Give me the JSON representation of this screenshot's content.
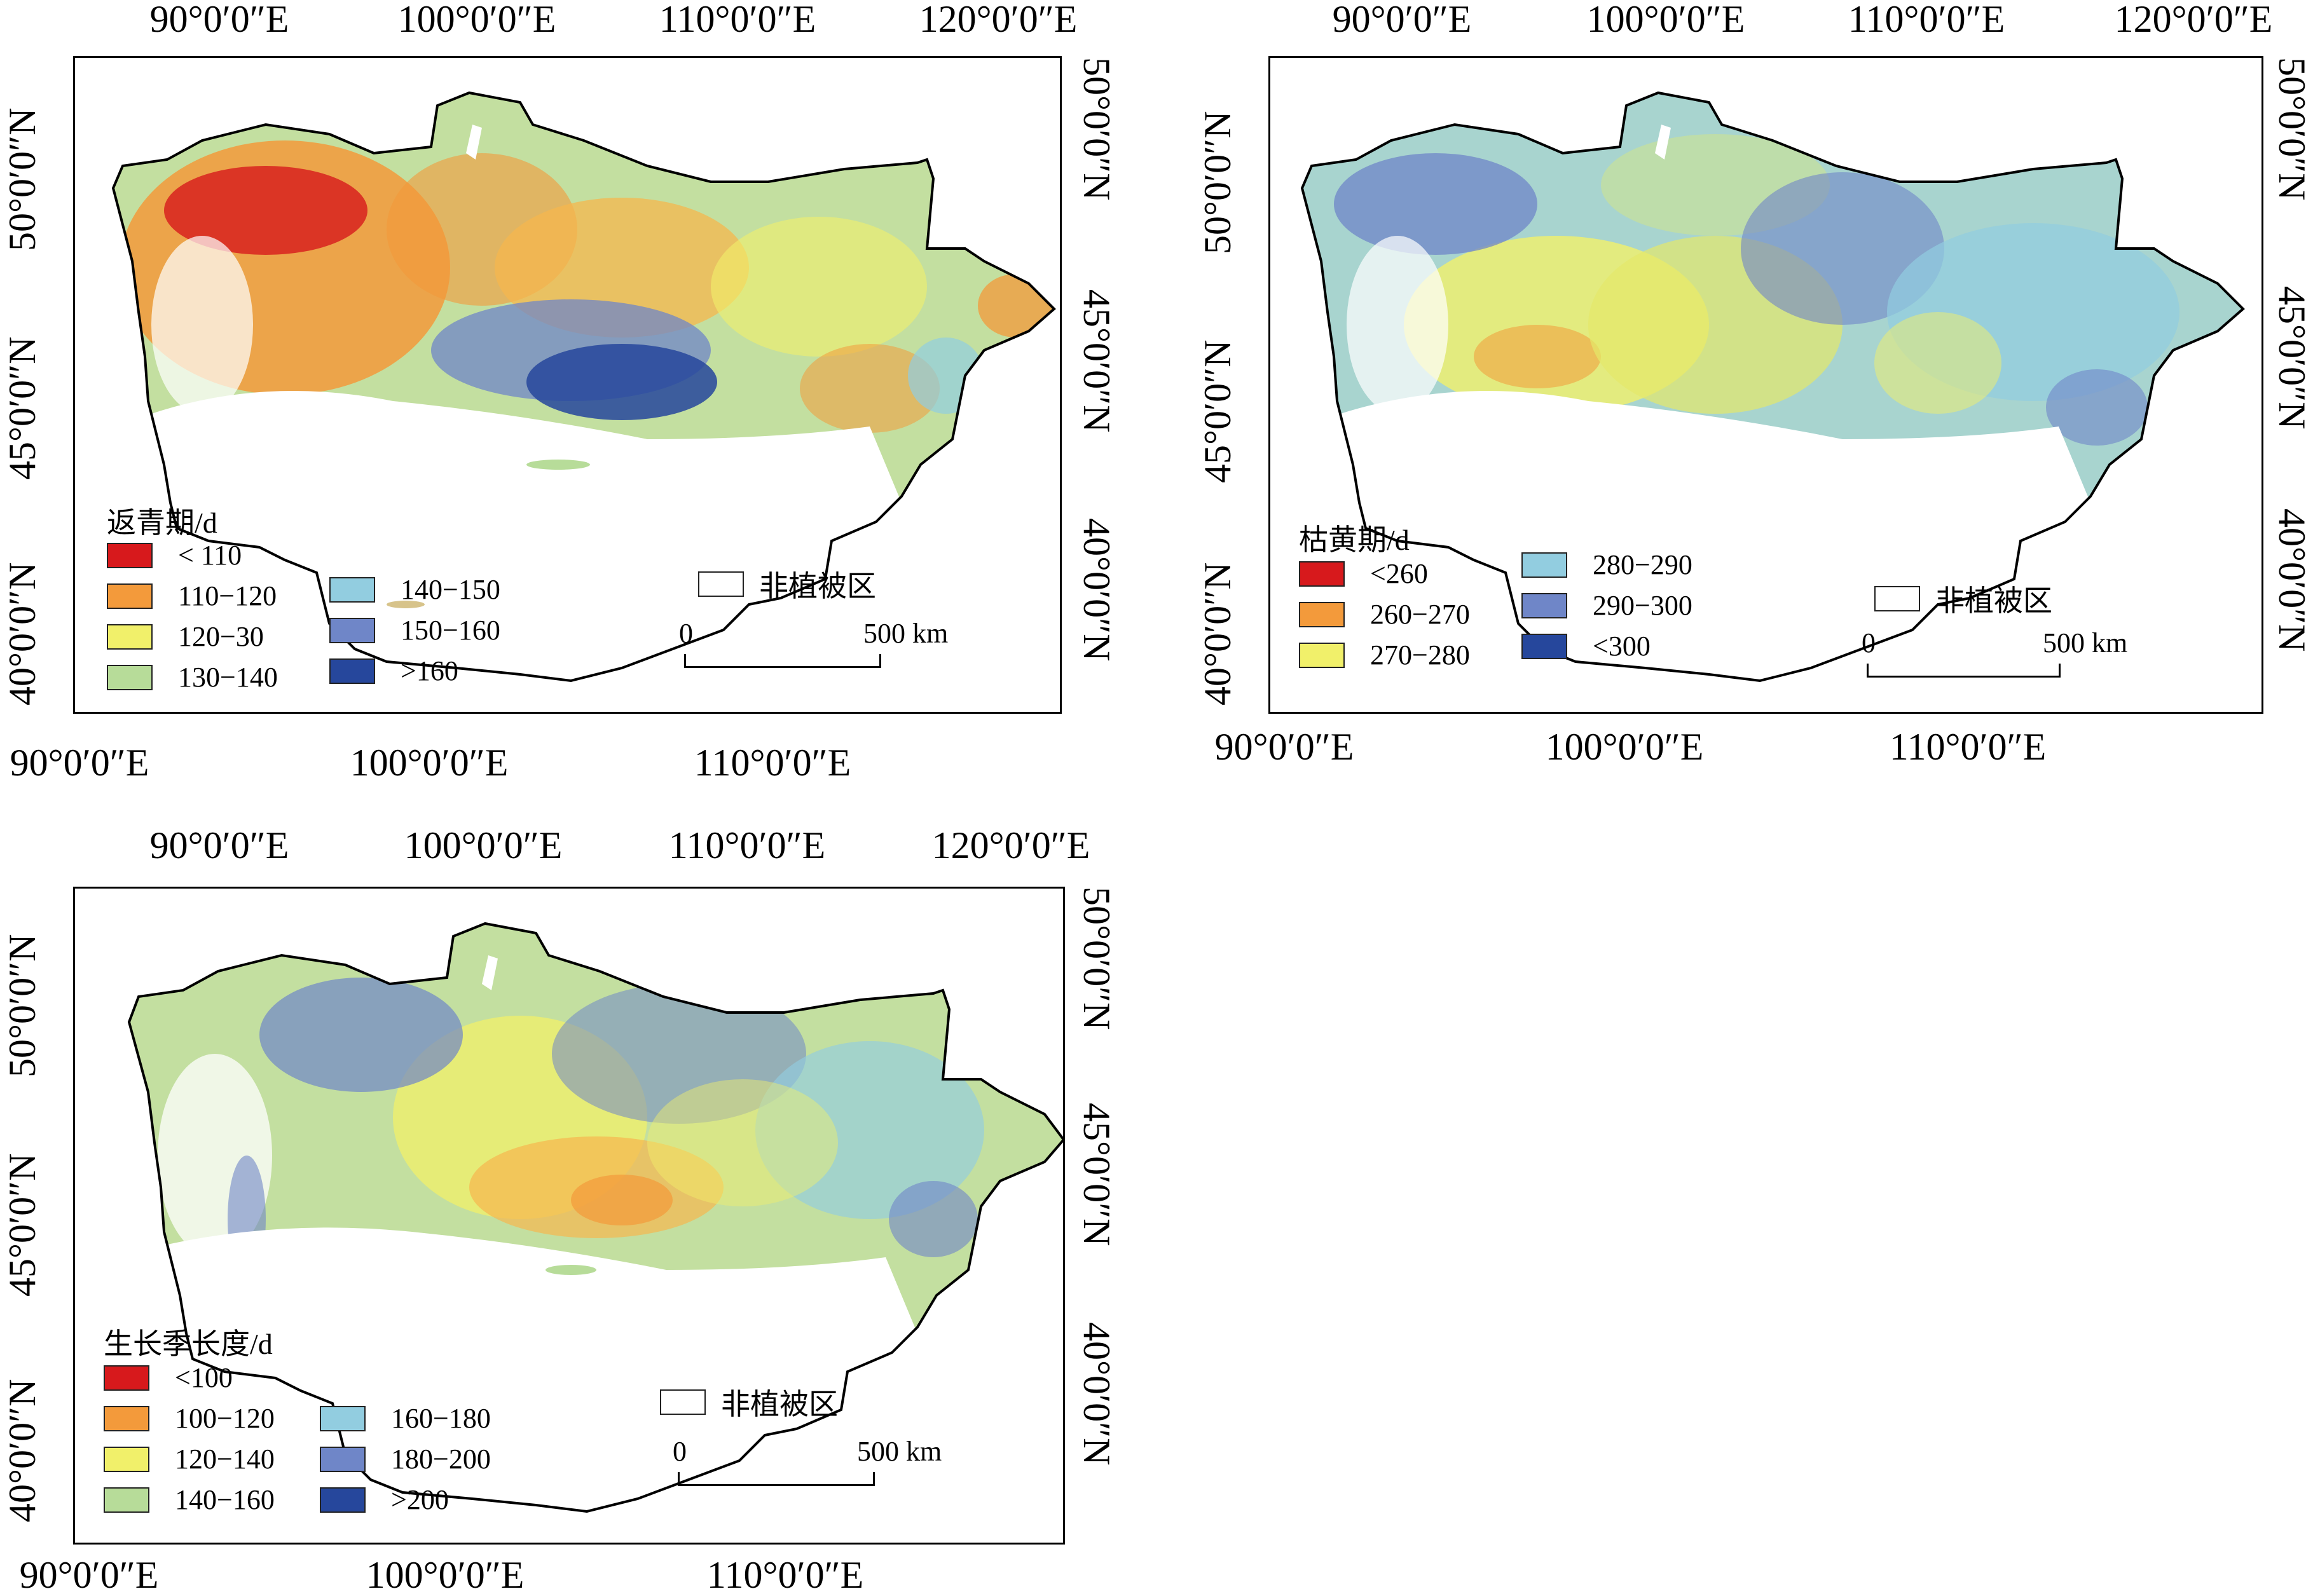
{
  "map_labels": {
    "lon_ticks": [
      "90°0′0″E",
      "100°0′0″E",
      "110°0′0″E",
      "120°0′0″E"
    ],
    "lat_ticks": [
      "50°0′0″N",
      "45°0′0″N",
      "40°0′0″N"
    ],
    "non_vegetation": "非植被区",
    "scale_zero": "0",
    "scale_max": "500 km"
  },
  "panels": [
    {
      "legend_title": "返青期/d",
      "classes": [
        {
          "label": "< 110",
          "color": "#d7191c"
        },
        {
          "label": "110−120",
          "color": "#f39a3b"
        },
        {
          "label": "120−30",
          "color": "#f1f06a"
        },
        {
          "label": "130−140",
          "color": "#b7dc99"
        },
        {
          "label": "140−150",
          "color": "#92cde0"
        },
        {
          "label": "150−160",
          "color": "#6f86c8"
        },
        {
          "label": ">160",
          "color": "#26479c"
        }
      ]
    },
    {
      "legend_title": "枯黄期/d",
      "classes": [
        {
          "label": "<260",
          "color": "#d7191c"
        },
        {
          "label": "260−270",
          "color": "#f39a3b"
        },
        {
          "label": "270−280",
          "color": "#f1f06a"
        },
        {
          "label": "280−290",
          "color": "#92cde0"
        },
        {
          "label": "290−300",
          "color": "#6f86c8"
        },
        {
          "label": "<300",
          "color": "#26479c"
        }
      ]
    },
    {
      "legend_title": "生长季长度/d",
      "classes": [
        {
          "label": "<100",
          "color": "#d7191c"
        },
        {
          "label": "100−120",
          "color": "#f39a3b"
        },
        {
          "label": "120−140",
          "color": "#f1f06a"
        },
        {
          "label": "140−160",
          "color": "#b7dc99"
        },
        {
          "label": "160−180",
          "color": "#92cde0"
        },
        {
          "label": "180−200",
          "color": "#6f86c8"
        },
        {
          "label": ">200",
          "color": "#26479c"
        }
      ]
    }
  ]
}
